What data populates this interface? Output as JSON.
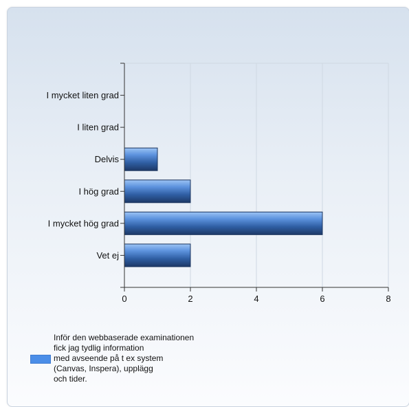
{
  "chart_data": {
    "type": "bar",
    "orientation": "horizontal",
    "categories": [
      "I mycket liten grad",
      "I liten grad",
      "Delvis",
      "I hög grad",
      "I mycket hög grad",
      "Vet ej"
    ],
    "series": [
      {
        "name": "Inför den webbaserade examinationen fick jag tydlig information med avseende på t ex system (Canvas, Inspera), upplägg och tider.",
        "values": [
          0,
          0,
          1,
          2,
          6,
          2
        ]
      }
    ],
    "xlim": [
      0,
      8
    ],
    "xticks": [
      0,
      2,
      4,
      6,
      8
    ],
    "grid": true,
    "legend_position": "bottom-left",
    "colors": {
      "bar_light": "#7fb2f0",
      "bar_mid": "#3f78c8",
      "bar_dark": "#1f3f70",
      "grid": "#cfd8e2",
      "axis": "#333333"
    }
  },
  "legend": {
    "label": "Inför den webbaserade examinationen\nfick jag tydlig information\nmed avseende på t ex system\n(Canvas, Inspera), upplägg\noch tider."
  }
}
